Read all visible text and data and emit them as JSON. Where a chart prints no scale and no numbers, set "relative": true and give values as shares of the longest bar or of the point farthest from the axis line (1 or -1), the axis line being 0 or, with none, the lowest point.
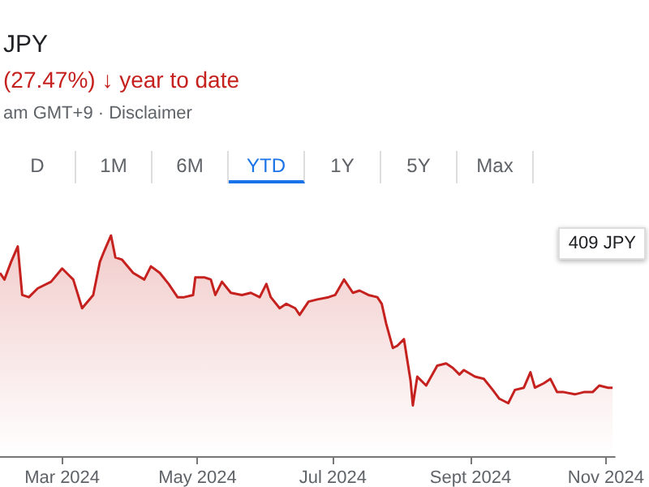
{
  "chart_data": {
    "type": "area",
    "title": "JPY",
    "subtitle": "(27.47%) ↓ year to date",
    "annotations": [
      "am GMT+9 · Disclaimer",
      "409 JPY",
      "D",
      "1M",
      "6M",
      "YTD",
      "1Y",
      "5Y",
      "Max"
    ],
    "relative": true,
    "xlim": [
      "2024-02-02",
      "2024-11-05"
    ],
    "xticks": [
      {
        "value": "2024-03-01",
        "label": "Mar 2024"
      },
      {
        "value": "2024-05-01",
        "label": "May 2024"
      },
      {
        "value": "2024-07-01",
        "label": "Jul 2024"
      },
      {
        "value": "2024-09-01",
        "label": "Sept 2024"
      },
      {
        "value": "2024-11-01",
        "label": "Nov 2024"
      }
    ],
    "x": [
      "2024-02-02",
      "2024-02-04",
      "2024-02-07",
      "2024-02-10",
      "2024-02-12",
      "2024-02-15",
      "2024-02-19",
      "2024-02-25",
      "2024-03-01",
      "2024-03-04",
      "2024-03-06",
      "2024-03-10",
      "2024-03-15",
      "2024-03-18",
      "2024-03-20",
      "2024-03-23",
      "2024-03-25",
      "2024-03-28",
      "2024-04-02",
      "2024-04-07",
      "2024-04-10",
      "2024-04-14",
      "2024-04-18",
      "2024-04-22",
      "2024-04-25",
      "2024-04-29",
      "2024-04-30",
      "2024-05-04",
      "2024-05-07",
      "2024-05-09",
      "2024-05-12",
      "2024-05-16",
      "2024-05-21",
      "2024-05-25",
      "2024-05-29",
      "2024-06-01",
      "2024-06-03",
      "2024-06-07",
      "2024-06-10",
      "2024-06-14",
      "2024-06-16",
      "2024-06-20",
      "2024-06-24",
      "2024-06-29",
      "2024-07-02",
      "2024-07-06",
      "2024-07-10",
      "2024-07-13",
      "2024-07-17",
      "2024-07-21",
      "2024-07-23",
      "2024-07-25",
      "2024-07-28",
      "2024-07-30",
      "2024-08-02",
      "2024-08-05",
      "2024-08-06",
      "2024-08-08",
      "2024-08-12",
      "2024-08-17",
      "2024-08-21",
      "2024-08-24",
      "2024-08-27",
      "2024-08-29",
      "2024-09-03",
      "2024-09-07",
      "2024-09-11",
      "2024-09-14",
      "2024-09-18",
      "2024-09-21",
      "2024-09-25",
      "2024-09-28",
      "2024-09-30",
      "2024-10-04",
      "2024-10-07",
      "2024-10-10",
      "2024-10-13",
      "2024-10-18",
      "2024-10-22",
      "2024-10-26",
      "2024-10-29",
      "2024-11-02",
      "2024-11-04"
    ],
    "series": [
      {
        "color": "#c5221f",
        "values": [
          0.83,
          0.8,
          0.88,
          0.95,
          0.73,
          0.72,
          0.76,
          0.79,
          0.85,
          0.82,
          0.8,
          0.67,
          0.73,
          0.88,
          0.93,
          1,
          0.9,
          0.89,
          0.83,
          0.8,
          0.86,
          0.83,
          0.78,
          0.72,
          0.72,
          0.73,
          0.81,
          0.81,
          0.8,
          0.73,
          0.79,
          0.74,
          0.73,
          0.74,
          0.72,
          0.78,
          0.72,
          0.67,
          0.69,
          0.67,
          0.64,
          0.7,
          0.71,
          0.72,
          0.73,
          0.8,
          0.74,
          0.75,
          0.73,
          0.72,
          0.69,
          0.6,
          0.49,
          0.5,
          0.53,
          0.34,
          0.23,
          0.36,
          0.32,
          0.41,
          0.42,
          0.4,
          0.37,
          0.39,
          0.36,
          0.35,
          0.3,
          0.26,
          0.24,
          0.3,
          0.31,
          0.38,
          0.31,
          0.33,
          0.35,
          0.29,
          0.29,
          0.28,
          0.29,
          0.29,
          0.32,
          0.31,
          0.31
        ]
      }
    ]
  }
}
